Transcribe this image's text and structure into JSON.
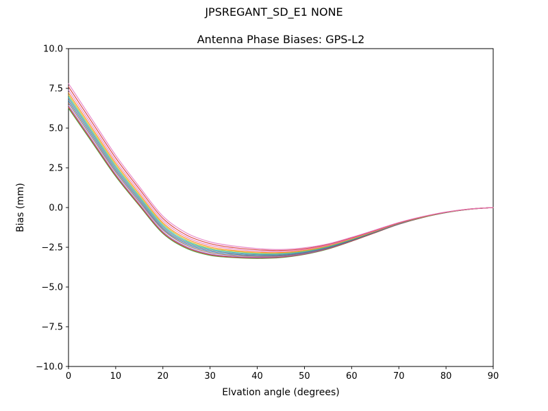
{
  "figure": {
    "title": "JPSREGANT_SD_E1 NONE"
  },
  "chart_data": {
    "type": "line",
    "title": "Antenna Phase Biases: GPS-L2",
    "xlabel": "Elvation angle (degrees)",
    "ylabel": "Bias (mm)",
    "xlim": [
      0,
      90
    ],
    "ylim": [
      -10,
      10
    ],
    "grid": false,
    "legend_position": "none",
    "xticks": {
      "values": [
        0,
        10,
        20,
        30,
        40,
        50,
        60,
        70,
        80,
        90
      ],
      "labels": [
        "0",
        "10",
        "20",
        "30",
        "40",
        "50",
        "60",
        "70",
        "80",
        "90"
      ]
    },
    "yticks": {
      "values": [
        10,
        7.5,
        5,
        2.5,
        0,
        -2.5,
        -5,
        -7.5,
        -10
      ],
      "labels": [
        "10.0",
        "7.5",
        "5.0",
        "2.5",
        "0.0",
        "−2.5",
        "−5.0",
        "−7.5",
        "−10.0"
      ]
    },
    "x": [
      0,
      5,
      10,
      15,
      20,
      25,
      30,
      35,
      40,
      45,
      50,
      55,
      60,
      65,
      70,
      75,
      80,
      85,
      90
    ],
    "series": [
      {
        "name": "line-1",
        "color": "#2ca02c",
        "values": [
          6.25,
          4.1,
          1.96,
          0.12,
          -1.63,
          -2.57,
          -3.01,
          -3.15,
          -3.2,
          -3.15,
          -2.95,
          -2.61,
          -2.12,
          -1.58,
          -1.05,
          -0.63,
          -0.32,
          -0.11,
          0.0
        ]
      },
      {
        "name": "line-2",
        "color": "#d62728",
        "values": [
          6.32,
          4.17,
          2.02,
          0.17,
          -1.58,
          -2.52,
          -2.97,
          -3.12,
          -3.17,
          -3.12,
          -2.93,
          -2.59,
          -2.11,
          -1.58,
          -1.05,
          -0.63,
          -0.31,
          -0.11,
          0.0
        ]
      },
      {
        "name": "line-3",
        "color": "#9467bd",
        "values": [
          6.42,
          4.26,
          2.1,
          0.25,
          -1.51,
          -2.46,
          -2.92,
          -3.07,
          -3.13,
          -3.09,
          -2.91,
          -2.57,
          -2.09,
          -1.56,
          -1.04,
          -0.62,
          -0.31,
          -0.11,
          0.0
        ]
      },
      {
        "name": "line-4",
        "color": "#8c564b",
        "values": [
          6.58,
          4.41,
          2.24,
          0.37,
          -1.39,
          -2.36,
          -2.83,
          -3.0,
          -3.07,
          -3.04,
          -2.86,
          -2.54,
          -2.07,
          -1.55,
          -1.03,
          -0.62,
          -0.31,
          -0.1,
          0.0
        ]
      },
      {
        "name": "line-5",
        "color": "#1f77b4",
        "values": [
          6.72,
          4.54,
          2.36,
          0.48,
          -1.3,
          -2.27,
          -2.75,
          -2.93,
          -3.01,
          -2.99,
          -2.83,
          -2.51,
          -2.04,
          -1.53,
          -1.02,
          -0.61,
          -0.31,
          -0.1,
          0.0
        ]
      },
      {
        "name": "line-6",
        "color": "#7f7f7f",
        "values": [
          6.85,
          4.66,
          2.47,
          0.58,
          -1.21,
          -2.19,
          -2.68,
          -2.87,
          -2.96,
          -2.95,
          -2.79,
          -2.48,
          -2.02,
          -1.52,
          -1.01,
          -0.61,
          -0.3,
          -0.1,
          0.0
        ]
      },
      {
        "name": "line-7",
        "color": "#17becf",
        "values": [
          6.96,
          4.76,
          2.57,
          0.67,
          -1.13,
          -2.12,
          -2.62,
          -2.82,
          -2.92,
          -2.91,
          -2.76,
          -2.46,
          -2.01,
          -1.5,
          -1.0,
          -0.6,
          -0.3,
          -0.1,
          0.0
        ]
      },
      {
        "name": "line-8",
        "color": "#bcbd22",
        "values": [
          7.08,
          4.87,
          2.67,
          0.76,
          -1.04,
          -2.05,
          -2.56,
          -2.76,
          -2.87,
          -2.87,
          -2.73,
          -2.43,
          -1.99,
          -1.49,
          -0.99,
          -0.6,
          -0.3,
          -0.1,
          0.0
        ]
      },
      {
        "name": "line-9",
        "color": "#ff7f0e",
        "values": [
          7.22,
          5.0,
          2.79,
          0.87,
          -0.95,
          -1.96,
          -2.48,
          -2.7,
          -2.81,
          -2.83,
          -2.69,
          -2.4,
          -1.96,
          -1.48,
          -0.98,
          -0.59,
          -0.3,
          -0.1,
          0.0
        ]
      },
      {
        "name": "line-10",
        "color": "#e377c2",
        "values": [
          7.4,
          5.17,
          2.94,
          1.01,
          -0.82,
          -1.85,
          -2.38,
          -2.61,
          -2.74,
          -2.77,
          -2.64,
          -2.37,
          -1.94,
          -1.46,
          -0.97,
          -0.58,
          -0.29,
          -0.1,
          0.0
        ]
      },
      {
        "name": "line-11",
        "color": "#d62728",
        "values": [
          7.6,
          5.36,
          3.12,
          1.17,
          -0.68,
          -1.73,
          -2.27,
          -2.52,
          -2.66,
          -2.7,
          -2.59,
          -2.32,
          -1.9,
          -1.43,
          -0.96,
          -0.58,
          -0.29,
          -0.09,
          0.0
        ]
      },
      {
        "name": "line-12",
        "color": "#e377c2",
        "values": [
          7.8,
          5.54,
          3.29,
          1.32,
          -0.54,
          -1.6,
          -2.16,
          -2.42,
          -2.58,
          -2.64,
          -2.53,
          -2.28,
          -1.87,
          -1.41,
          -0.94,
          -0.57,
          -0.28,
          -0.09,
          0.0
        ]
      }
    ]
  }
}
